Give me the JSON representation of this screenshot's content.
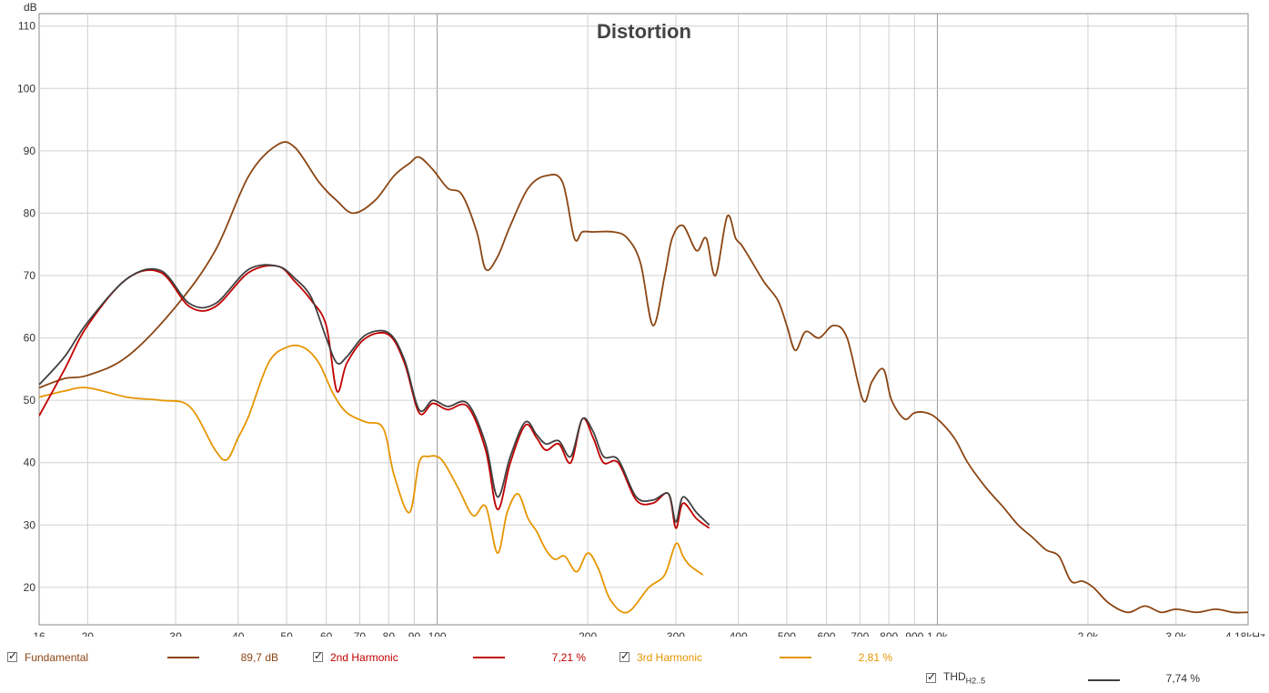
{
  "chart_data": {
    "type": "line",
    "title": "Distortion",
    "ylabel": "dB",
    "xlabel": "",
    "xscale": "log",
    "xlim": [
      16,
      4180
    ],
    "ylim": [
      14,
      112
    ],
    "grid": true,
    "x_ticks": [
      16,
      20,
      30,
      40,
      50,
      60,
      70,
      80,
      90,
      100,
      200,
      300,
      400,
      500,
      600,
      700,
      800,
      900,
      1000,
      2000,
      3000,
      4180
    ],
    "x_tick_labels": [
      "16",
      "20",
      "30",
      "40",
      "50",
      "60",
      "70",
      "80",
      "90",
      "100",
      "200",
      "300",
      "400",
      "500",
      "600",
      "700",
      "800",
      "900",
      "1,0k",
      "2,0k",
      "3,0k",
      "4,18kHz"
    ],
    "y_ticks": [
      20,
      30,
      40,
      50,
      60,
      70,
      80,
      90,
      100,
      110
    ],
    "series": [
      {
        "name": "Fundamental",
        "color": "#8b4513",
        "x": [
          16,
          18,
          20,
          24,
          30,
          36,
          42,
          48,
          52,
          58,
          63,
          68,
          75,
          82,
          88,
          92,
          98,
          105,
          112,
          120,
          125,
          132,
          140,
          152,
          165,
          178,
          188,
          195,
          205,
          225,
          240,
          255,
          270,
          285,
          295,
          310,
          330,
          345,
          360,
          380,
          395,
          405,
          420,
          450,
          480,
          500,
          520,
          545,
          580,
          620,
          660,
          710,
          740,
          780,
          810,
          860,
          900,
          950,
          1000,
          1080,
          1150,
          1250,
          1350,
          1450,
          1550,
          1650,
          1750,
          1850,
          1950,
          2050,
          2200,
          2400,
          2600,
          2800,
          3000,
          3300,
          3600,
          3900,
          4180
        ],
        "y": [
          52,
          53.5,
          54,
          57,
          65,
          74,
          86,
          91,
          90.5,
          85,
          82,
          80,
          82,
          86,
          88,
          89,
          87,
          84,
          83,
          77,
          71,
          73,
          78,
          84,
          86,
          85,
          76,
          77,
          77,
          77,
          76,
          72,
          62,
          70,
          76,
          78,
          74,
          76,
          70,
          79.5,
          76,
          75,
          73,
          69,
          66,
          62,
          58,
          61,
          60,
          62,
          60,
          50,
          53,
          55,
          50,
          47,
          48,
          48,
          47,
          44,
          40,
          36,
          33,
          30,
          28,
          26,
          25,
          21,
          21,
          20,
          17.5,
          16,
          17,
          16,
          16.5,
          16,
          16.5,
          16,
          16
        ]
      },
      {
        "name": "2nd Harmonic",
        "color": "#c00000",
        "x": [
          16,
          18,
          20,
          24,
          28,
          32,
          36,
          42,
          48,
          52,
          56,
          60,
          63,
          66,
          72,
          80,
          86,
          92,
          98,
          105,
          115,
          125,
          132,
          140,
          150,
          158,
          165,
          175,
          185,
          195,
          205,
          215,
          230,
          250,
          270,
          290,
          300,
          310,
          330,
          350
        ],
        "y": [
          47.5,
          55,
          62,
          69.5,
          70.5,
          65,
          65,
          70.5,
          71.5,
          69,
          66,
          62,
          51.5,
          56,
          60,
          60.5,
          56,
          48,
          49.5,
          48.5,
          49,
          42,
          32.5,
          40,
          46,
          44,
          42,
          43,
          40,
          47,
          44,
          40,
          40,
          34,
          33.5,
          35,
          29.5,
          33.5,
          31,
          29.5
        ]
      },
      {
        "name": "3rd Harmonic",
        "color": "#e69500",
        "x": [
          16,
          18,
          20,
          24,
          28,
          32,
          36,
          38,
          40,
          42,
          46,
          50,
          54,
          58,
          62,
          66,
          72,
          78,
          82,
          88,
          92,
          96,
          102,
          110,
          118,
          125,
          132,
          138,
          145,
          152,
          158,
          165,
          172,
          180,
          190,
          200,
          210,
          222,
          240,
          265,
          285,
          300,
          310,
          320,
          340
        ],
        "y": [
          50.5,
          51.5,
          52,
          50.5,
          50,
          49,
          42,
          40.5,
          44,
          47.5,
          56,
          58.5,
          58.5,
          56,
          51,
          48,
          46.5,
          45.5,
          38,
          32,
          40,
          41,
          40.5,
          36,
          31.5,
          33,
          25.5,
          32,
          35,
          31,
          29,
          26,
          24.5,
          25,
          22.5,
          25.5,
          23,
          18,
          16,
          20,
          22,
          27,
          25,
          23.5,
          22
        ]
      },
      {
        "name": "THD H2..5",
        "color": "#404040",
        "x": [
          16,
          18,
          20,
          24,
          28,
          32,
          36,
          42,
          48,
          52,
          56,
          60,
          63,
          66,
          72,
          80,
          86,
          92,
          98,
          105,
          115,
          125,
          132,
          140,
          150,
          158,
          165,
          175,
          185,
          195,
          205,
          215,
          230,
          250,
          270,
          290,
          300,
          310,
          330,
          350
        ],
        "y": [
          52.5,
          57,
          62.5,
          69.5,
          70.8,
          65.5,
          65.5,
          71,
          71.5,
          69.5,
          66.5,
          60,
          56,
          57,
          60.5,
          60.8,
          56.5,
          48.5,
          50,
          49,
          49.5,
          43,
          34.5,
          41,
          46.5,
          44.5,
          43,
          43.5,
          41,
          47,
          45,
          41,
          40.5,
          34.5,
          34,
          35,
          30.5,
          34.5,
          32,
          30
        ]
      }
    ]
  },
  "legend": {
    "items": [
      {
        "label": "Fundamental",
        "value": "89,7 dB",
        "color": "#8b4513"
      },
      {
        "label": "2nd Harmonic",
        "value": "7,21 %",
        "color": "#c00000"
      },
      {
        "label": "3rd Harmonic",
        "value": "2,81 %",
        "color": "#e69500"
      }
    ],
    "thd": {
      "label": "THD",
      "sub": "H2..5",
      "value": "7,74 %",
      "color": "#404040"
    }
  }
}
